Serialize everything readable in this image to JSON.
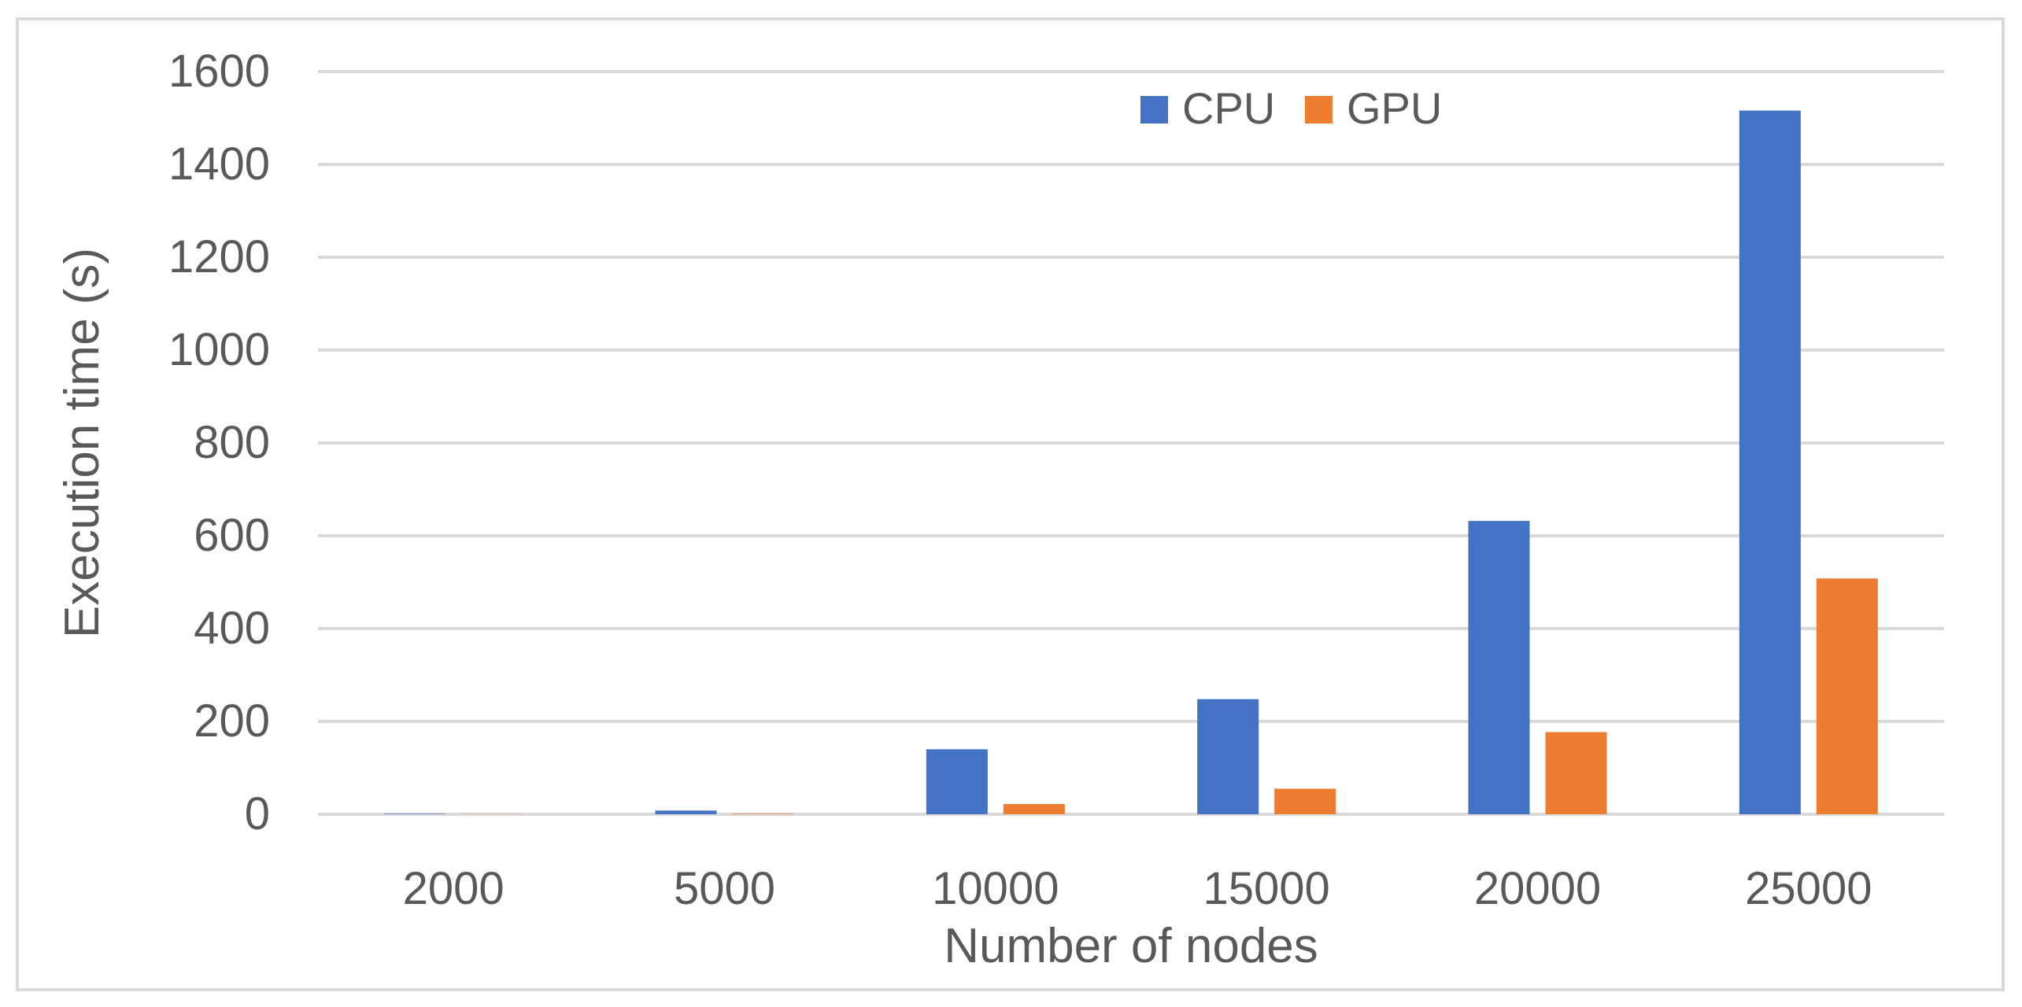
{
  "chart_data": {
    "type": "bar",
    "title": "",
    "xlabel": "Number of nodes",
    "ylabel": "Execution time (s)",
    "categories": [
      "2000",
      "5000",
      "10000",
      "15000",
      "20000",
      "25000"
    ],
    "series": [
      {
        "name": "CPU",
        "color": "#4472c4",
        "values": [
          1,
          8,
          140,
          248,
          632,
          1516
        ]
      },
      {
        "name": "GPU",
        "color": "#ed7d31",
        "values": [
          0.5,
          1,
          22,
          55,
          177,
          508
        ]
      }
    ],
    "ylim": [
      0,
      1600
    ],
    "yticks": [
      "0",
      "200",
      "400",
      "600",
      "800",
      "1000",
      "1200",
      "1400",
      "1600"
    ],
    "grid": true,
    "legend_position": "top-center"
  }
}
